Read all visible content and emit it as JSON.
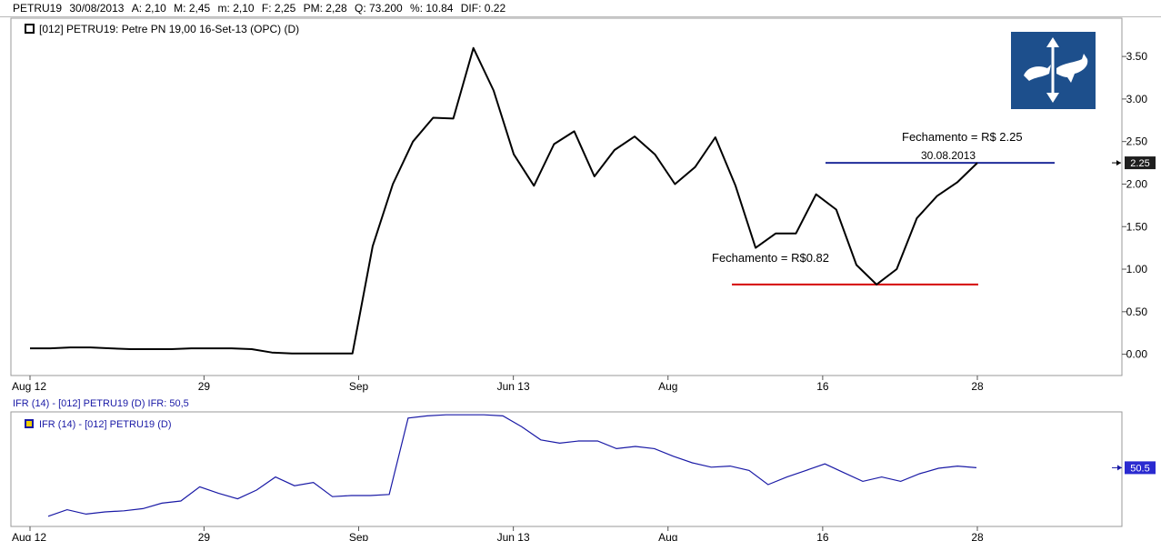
{
  "info_bar": {
    "symbol": "PETRU19",
    "date": "30/08/2013",
    "open": "A: 2,10",
    "high": "M: 2,45",
    "low": "m: 2,10",
    "close": "F: 2,25",
    "avg_price": "PM: 2,28",
    "quantity": "Q: 73.200",
    "change": "%: 10.84",
    "diff": "DIF: 0.22"
  },
  "colors": {
    "price_line": "#000000",
    "ifr_line": "#1a1aa6",
    "high_line": "#1f2b9a",
    "low_line": "#d40000",
    "axis_text": "#000000",
    "indicator_text": "#1a1aa6",
    "logo_bg": "#1d4f8c"
  },
  "logo": {
    "icon": "bull-bear-arrows-icon"
  },
  "chart_data": [
    {
      "type": "line",
      "legend": "[012] PETRU19: Petre PN   19,00 16-Set-13 (OPC)     (D)",
      "legend_placement": "top-left",
      "x_tick_labels": [
        "Aug 12",
        "29",
        "Sep",
        "Jun 13",
        "Aug",
        "16",
        "28"
      ],
      "y_tick_labels": [
        "0.00",
        "0.50",
        "1.00",
        "1.50",
        "2.00",
        "2.50",
        "3.00",
        "3.50"
      ],
      "ylim": [
        -0.25,
        3.95
      ],
      "grid": false,
      "last_value_label": "2.25",
      "series": [
        {
          "values": [
            0.07,
            0.07,
            0.08,
            0.08,
            0.07,
            0.06,
            0.06,
            0.06,
            0.07,
            0.07,
            0.07,
            0.06,
            0.02,
            0.01,
            0.01,
            0.01,
            0.01,
            1.27,
            2.0,
            2.5,
            2.78,
            2.77,
            3.6,
            3.1,
            2.35,
            1.98,
            2.47,
            2.62,
            2.09,
            2.4,
            2.56,
            2.35,
            2.0,
            2.2,
            2.55,
            1.98,
            1.25,
            1.42,
            1.42,
            1.88,
            1.7,
            1.05,
            0.82,
            1.0,
            1.6,
            1.86,
            2.02,
            2.25
          ]
        }
      ],
      "annotations": [
        {
          "text": "Fechamento = R$ 2.25",
          "value": 2.25
        },
        {
          "text": "30.08.2013"
        },
        {
          "text": "Fechamento = R$0.82",
          "value": 0.82
        }
      ]
    },
    {
      "type": "line",
      "title": "IFR (14)  - [012] PETRU19 (D)  IFR: 50,5",
      "legend": "IFR (14)  - [012] PETRU19 (D)",
      "legend_placement": "top-left",
      "x_tick_labels": [
        "Aug 12",
        "29",
        "Sep",
        "Jun 13",
        "Aug",
        "16",
        "28"
      ],
      "grid": false,
      "last_value_label": "50.5",
      "series": [
        {
          "values": [
            6,
            12,
            8,
            10,
            11,
            13,
            18,
            20,
            33,
            27,
            22,
            30,
            42,
            34,
            37,
            24,
            25,
            25,
            26,
            96,
            98,
            99,
            99,
            99,
            98,
            88,
            76,
            73,
            75,
            75,
            68,
            70,
            68,
            61,
            55,
            51,
            52,
            48,
            35,
            42,
            48,
            54,
            46,
            38,
            42,
            38,
            45,
            50,
            52,
            50.5
          ]
        }
      ]
    }
  ]
}
